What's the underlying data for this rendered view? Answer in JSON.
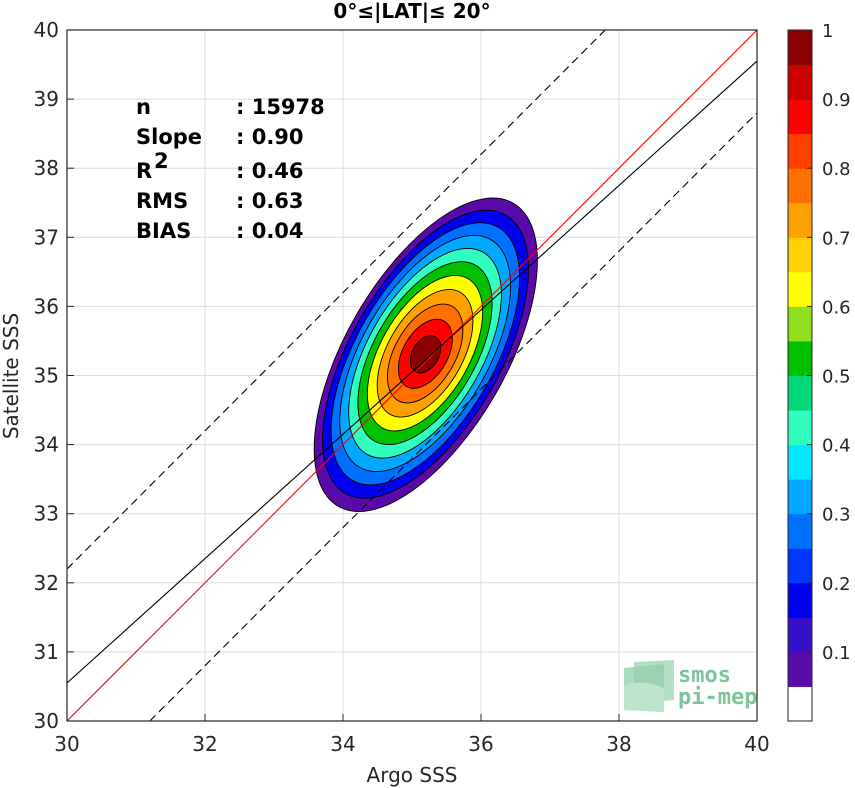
{
  "chart_data": {
    "type": "contour",
    "title": "0°≤|LAT|≤ 20°",
    "xlabel": "Argo SSS",
    "ylabel": "Satellite SSS",
    "xlim": [
      30,
      40
    ],
    "ylim": [
      30,
      40
    ],
    "xticks": [
      "30",
      "32",
      "34",
      "36",
      "38",
      "40"
    ],
    "yticks": [
      "30",
      "31",
      "32",
      "33",
      "34",
      "35",
      "36",
      "37",
      "38",
      "39",
      "40"
    ],
    "grid": true,
    "stats": [
      {
        "label": "n",
        "value": ": 15978"
      },
      {
        "label": "Slope",
        "value": ": 0.90"
      },
      {
        "label": "R",
        "sup": "2",
        "value": ": 0.46"
      },
      {
        "label": "RMS",
        "value": ": 0.63"
      },
      {
        "label": "BIAS",
        "value": ": 0.04"
      }
    ],
    "density_peak": {
      "x": 35.2,
      "y": 35.3
    },
    "density_orientation_deg": 60,
    "contour_levels": [
      0.05,
      0.1,
      0.2,
      0.3,
      0.4,
      0.5,
      0.6,
      0.7,
      0.8,
      0.9,
      0.95
    ],
    "lines": [
      {
        "name": "identity",
        "color": "#ff0000",
        "slope": 1.0,
        "intercept": 0.0,
        "style": "solid"
      },
      {
        "name": "regression",
        "color": "#000000",
        "slope": 0.9,
        "intercept": 3.55,
        "style": "solid"
      },
      {
        "name": "upper-bound",
        "color": "#000000",
        "slope": 1.0,
        "intercept": 2.2,
        "style": "dashed"
      },
      {
        "name": "lower-bound",
        "color": "#000000",
        "slope": 1.0,
        "intercept": -1.2,
        "style": "dashed"
      }
    ],
    "colorbar": {
      "range": [
        0,
        1
      ],
      "ticks": [
        "0.1",
        "0.2",
        "0.3",
        "0.4",
        "0.5",
        "0.6",
        "0.7",
        "0.8",
        "0.9",
        "1"
      ],
      "colors": [
        "#ffffff",
        "#5a0aa8",
        "#3510c8",
        "#0000f0",
        "#0038ff",
        "#0070ff",
        "#00a8ff",
        "#00e8ff",
        "#30ffc0",
        "#00d878",
        "#00c000",
        "#90e020",
        "#ffff00",
        "#ffd000",
        "#ffa000",
        "#ff7000",
        "#ff4000",
        "#ff0000",
        "#cc0000",
        "#8b0000"
      ]
    }
  },
  "logo": {
    "line1": "smos",
    "line2": "pi-mep"
  }
}
